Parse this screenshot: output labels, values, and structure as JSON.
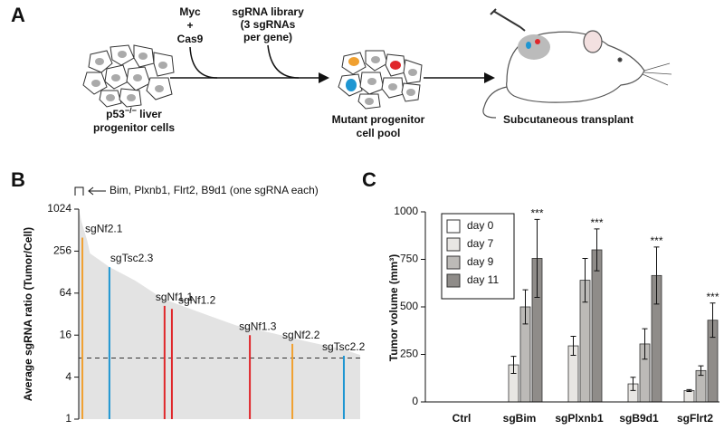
{
  "panel_a": {
    "label": "A",
    "input_1": [
      "Myc",
      "+",
      "Cas9"
    ],
    "input_2": [
      "sgRNA library",
      "(3 sgRNAs",
      "per gene)"
    ],
    "start_label": {
      "gene": "p53",
      "genotype": "−/−",
      "rest": " liver",
      "line_2": "progenitor cells"
    },
    "middle_label": [
      "Mutant progenitor",
      "cell pool"
    ],
    "end_label": "Subcutaneous transplant"
  },
  "chart_data": [
    {
      "type": "area",
      "panel_label": "B",
      "y_label": "Average sgRNA ratio (Tumor/Cell)",
      "annotation": "Bim, Plxnb1, Flrt2, B9d1 (one sgRNA each)",
      "x": [
        0,
        1,
        3,
        4,
        11,
        20,
        30,
        43,
        56,
        69,
        81,
        94,
        100
      ],
      "values": [
        1024,
        675,
        362,
        238,
        151,
        97,
        53,
        34,
        22,
        17,
        13,
        10,
        8.3
      ],
      "color": "#e3e3e3",
      "xlim": [
        0,
        100
      ],
      "ylim": [
        1,
        1024
      ],
      "log_scale": true,
      "yticks": [
        1,
        4,
        16,
        64,
        256,
        1024
      ],
      "reference_line": 7.5,
      "highlights": [
        {
          "name": "sgNf2.1",
          "x": 1.3,
          "value": 400,
          "color": "#f0a030"
        },
        {
          "name": "sgTsc2.3",
          "x": 10.9,
          "value": 151,
          "color": "#1e96d2"
        },
        {
          "name": "sgNf1.1",
          "x": 30.5,
          "value": 42,
          "color": "#e0262a"
        },
        {
          "name": "sgNf1.2",
          "x": 33.1,
          "value": 38,
          "color": "#e0262a"
        },
        {
          "name": "sgNf1.3",
          "x": 60.8,
          "value": 16,
          "color": "#e0262a"
        },
        {
          "name": "sgNf2.2",
          "x": 75.9,
          "value": 12,
          "color": "#f0a030"
        },
        {
          "name": "sgTsc2.2",
          "x": 94.2,
          "value": 8.1,
          "color": "#1e96d2"
        }
      ]
    },
    {
      "type": "bar",
      "panel_label": "C",
      "y_label": "Tumor volume (mm³)",
      "categories": [
        "Ctrl",
        "sgBim",
        "sgPlxnb1",
        "sgB9d1",
        "sgFlrt2"
      ],
      "series": [
        {
          "name": "day 0",
          "color": "#ffffff",
          "values": [
            0,
            0,
            0,
            0,
            0
          ],
          "errors": [
            0,
            0,
            0,
            0,
            0
          ]
        },
        {
          "name": "day 7",
          "color": "#e8e6e3",
          "values": [
            0,
            195,
            295,
            95,
            60
          ],
          "errors": [
            0,
            45,
            50,
            35,
            5
          ]
        },
        {
          "name": "day 9",
          "color": "#bcbab7",
          "values": [
            0,
            500,
            640,
            305,
            165
          ],
          "errors": [
            0,
            90,
            115,
            80,
            25
          ]
        },
        {
          "name": "day 11",
          "color": "#8f8c89",
          "values": [
            0,
            755,
            800,
            665,
            430
          ],
          "errors": [
            0,
            205,
            110,
            150,
            90
          ]
        }
      ],
      "significance": [
        null,
        "***",
        "***",
        "***",
        "***"
      ],
      "ylim": [
        0,
        1000
      ],
      "yticks": [
        0,
        250,
        500,
        750,
        1000
      ],
      "legend": "upper left"
    }
  ]
}
